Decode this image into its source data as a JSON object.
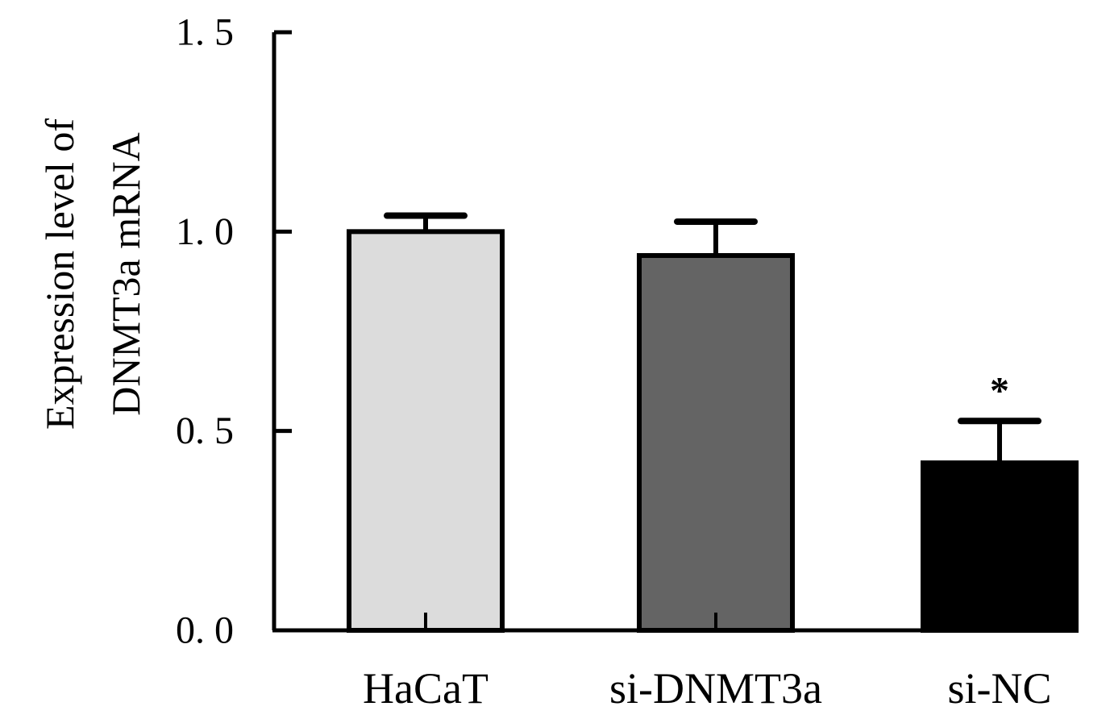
{
  "chart_data": {
    "type": "bar",
    "ylabel_lines": [
      "Expression level of",
      "DNMT3a mRNA"
    ],
    "xlabel": "",
    "ylim": [
      0,
      1.5
    ],
    "yticks": [
      0.0,
      0.5,
      1.0,
      1.5
    ],
    "ytick_labels": [
      "0. 0",
      "0. 5",
      "1. 0",
      "1. 5"
    ],
    "categories": [
      "HaCaT",
      "si-DNMT3a",
      "si-NC"
    ],
    "values": [
      1.0,
      0.94,
      0.42
    ],
    "errors": [
      0.04,
      0.085,
      0.105
    ],
    "bar_colors": [
      "#dcdcdc",
      "#646464",
      "#000000"
    ],
    "annotations": [
      "",
      "",
      "*"
    ],
    "grid": false,
    "legend": "none"
  }
}
